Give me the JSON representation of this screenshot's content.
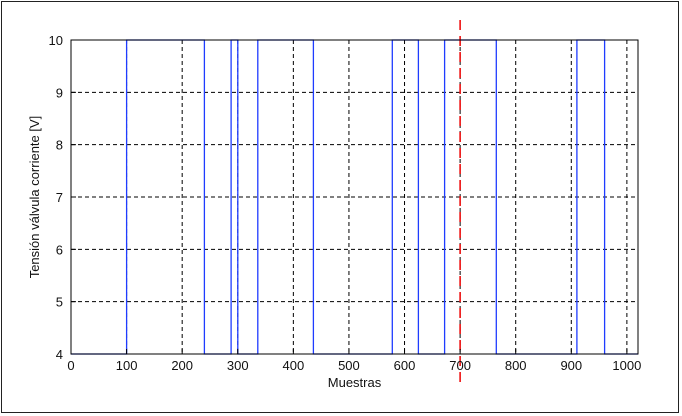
{
  "chart_data": {
    "type": "line",
    "title": "",
    "xlabel": "Muestras",
    "ylabel": "Tensión válvula corriente [V]",
    "xlim": [
      0,
      1020
    ],
    "ylim": [
      4,
      10
    ],
    "xticks": [
      0,
      100,
      200,
      300,
      400,
      500,
      600,
      700,
      800,
      900,
      1000
    ],
    "yticks": [
      4,
      5,
      6,
      7,
      8,
      9,
      10
    ],
    "grid": true,
    "grid_style": "dashed",
    "colors": {
      "series": "#1f3cff",
      "marker_line": "#ee1111",
      "grid": "#000000"
    },
    "series": [
      {
        "x": [
          0,
          100,
          100,
          240,
          240,
          288,
          288,
          300,
          300,
          336,
          336,
          436,
          436,
          578,
          578,
          625,
          625,
          672,
          672,
          765,
          765,
          910,
          910,
          960,
          960,
          1020
        ],
        "y": [
          4,
          4,
          10,
          10,
          4,
          4,
          10,
          10,
          4,
          4,
          10,
          10,
          4,
          4,
          10,
          10,
          4,
          4,
          10,
          10,
          4,
          4,
          10,
          10,
          4,
          4
        ]
      }
    ],
    "vertical_marker": {
      "x": 700,
      "style": "dashed"
    }
  }
}
